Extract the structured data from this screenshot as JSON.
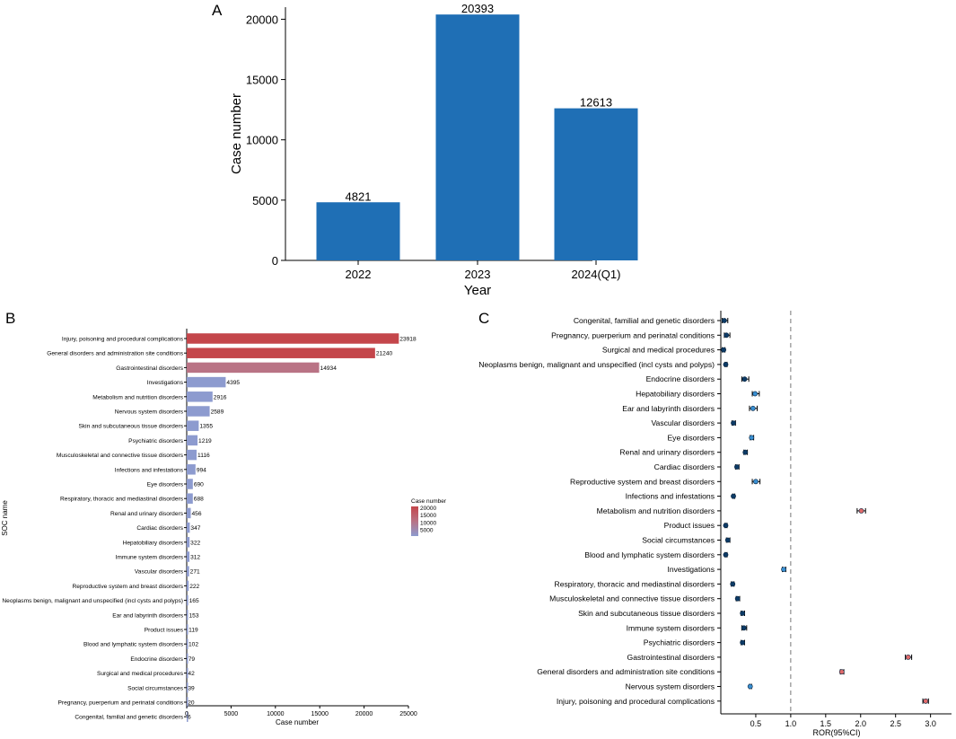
{
  "panels": {
    "a": "A",
    "b": "B",
    "c": "C"
  },
  "colors": {
    "bar_a": "#1f6fb5",
    "b_high": "#c4464b",
    "b_mid": "#b97385",
    "b_low": "#8d9bcf",
    "point_low": "#0d3b66",
    "point_high": "#e06b6b",
    "ci": "#000000",
    "refline": "#777777"
  },
  "chart_data": [
    {
      "id": "A",
      "type": "bar",
      "categories": [
        "2022",
        "2023",
        "2024(Q1)"
      ],
      "values": [
        4821,
        20393,
        12613
      ],
      "xlabel": "Year",
      "ylabel": "Case number",
      "ylim": [
        0,
        21000
      ],
      "yticks": [
        0,
        5000,
        10000,
        15000,
        20000
      ]
    },
    {
      "id": "B",
      "type": "bar",
      "orientation": "horizontal",
      "categories": [
        "Injury, poisoning and procedural complications",
        "General disorders and administration site conditions",
        "Gastrointestinal disorders",
        "Investigations",
        "Metabolism and nutrition disorders",
        "Nervous system disorders",
        "Skin and subcutaneous tissue disorders",
        "Psychiatric disorders",
        "Musculoskeletal and connective tissue disorders",
        "Infections and infestations",
        "Eye disorders",
        "Respiratory, thoracic and mediastinal disorders",
        "Renal and urinary disorders",
        "Cardiac disorders",
        "Hepatobiliary disorders",
        "Immune system disorders",
        "Vascular disorders",
        "Reproductive system and breast disorders",
        "Neoplasms benign, malignant and unspecified (incl cysts and polyps)",
        "Ear and labyrinth disorders",
        "Product issues",
        "Blood and lymphatic system disorders",
        "Endocrine disorders",
        "Surgical and medical procedures",
        "Social circumstances",
        "Pregnancy, puerperium and perinatal conditions",
        "Congenital, familial and genetic disorders"
      ],
      "values": [
        23918,
        21240,
        14934,
        4395,
        2916,
        2589,
        1355,
        1219,
        1116,
        994,
        690,
        688,
        456,
        347,
        322,
        312,
        271,
        222,
        165,
        153,
        119,
        102,
        79,
        42,
        39,
        20,
        6
      ],
      "xlabel": "Case number",
      "ylabel": "SOC name",
      "xlim": [
        0,
        25000
      ],
      "xticks": [
        0,
        5000,
        10000,
        15000,
        20000,
        25000
      ],
      "legend": {
        "title": "Case number",
        "entries": [
          "20000",
          "15000",
          "10000",
          "5000"
        ],
        "position": "right"
      }
    },
    {
      "id": "C",
      "type": "forest",
      "categories": [
        "Congenital, familial and genetic disorders",
        "Pregnancy, puerperium and perinatal conditions",
        "Surgical and medical procedures",
        "Neoplasms benign, malignant and unspecified (incl cysts and polyps)",
        "Endocrine disorders",
        "Hepatobiliary disorders",
        "Ear and labyrinth disorders",
        "Vascular disorders",
        "Eye disorders",
        "Renal and urinary disorders",
        "Cardiac disorders",
        "Reproductive system and breast disorders",
        "Infections and infestations",
        "Metabolism and nutrition disorders",
        "Product issues",
        "Social circumstances",
        "Blood and lymphatic system disorders",
        "Investigations",
        "Respiratory, thoracic and mediastinal disorders",
        "Musculoskeletal and connective tissue disorders",
        "Skin and subcutaneous tissue disorders",
        "Immune system disorders",
        "Psychiatric disorders",
        "Gastrointestinal disorders",
        "General disorders and administration site conditions",
        "Nervous system disorders",
        "Injury, poisoning and procedural complications"
      ],
      "ror": [
        0.05,
        0.08,
        0.04,
        0.07,
        0.34,
        0.49,
        0.46,
        0.18,
        0.44,
        0.35,
        0.23,
        0.5,
        0.18,
        2.01,
        0.07,
        0.1,
        0.07,
        0.9,
        0.17,
        0.24,
        0.31,
        0.33,
        0.31,
        2.68,
        1.73,
        0.42,
        2.93
      ],
      "ci_low": [
        0.02,
        0.05,
        0.02,
        0.06,
        0.3,
        0.45,
        0.41,
        0.16,
        0.42,
        0.33,
        0.21,
        0.45,
        0.17,
        1.95,
        0.06,
        0.08,
        0.06,
        0.88,
        0.15,
        0.22,
        0.29,
        0.3,
        0.29,
        2.64,
        1.71,
        0.41,
        2.89
      ],
      "ci_high": [
        0.1,
        0.13,
        0.06,
        0.09,
        0.4,
        0.55,
        0.52,
        0.21,
        0.47,
        0.38,
        0.26,
        0.56,
        0.2,
        2.07,
        0.09,
        0.13,
        0.09,
        0.93,
        0.19,
        0.27,
        0.34,
        0.37,
        0.34,
        2.73,
        1.76,
        0.44,
        2.97
      ],
      "xlabel": "ROR(95%CI)",
      "xlim": [
        0,
        3.3
      ],
      "xticks": [
        "0.5",
        "1.0",
        "1.5",
        "2.0",
        "2.5",
        "3.0"
      ],
      "reference_line": 1.0
    }
  ]
}
